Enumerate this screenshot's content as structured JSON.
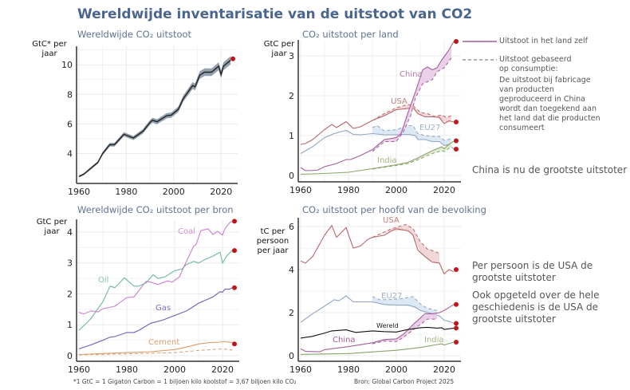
{
  "title": "Wereldwijde inventarisatie  van de uitstoot van CO2",
  "annotations": {
    "legend_territorial": "Uitstoot in het land zelf",
    "legend_consumption": "Uitstoot gebaseerd op consumptie:",
    "legend_consumption_detail": "De uitstoot bij fabricage van producten geproduceerd in China wordt dan toegekend aan het land dat die producten consumeert",
    "china_note": "China is nu de grootste uitstoter",
    "per_person_note": "Per persoon is de USA de grootste uitstoter",
    "cumulative_note": "Ook opgeteld over de hele geschiedenis is de USA de grootste uitstoter"
  },
  "footnote": "*1 GtC = 1 Gigaton Carbon = 1 biljoen kilo koolstof = 3,67 biljoen kilo CO₂",
  "source": "Bron: Global Carbon Project 2025",
  "colors": {
    "title": "#4a6690",
    "dot": "#c0161b",
    "grid": "#ebebeb"
  },
  "chart_data": [
    {
      "type": "line",
      "title": "Wereldwijde CO₂ uitstoot",
      "ylabel": "GtC* per jaar",
      "xlim": [
        1959,
        2027
      ],
      "ylim": [
        1.98,
        11.25
      ],
      "xticks": [
        1960,
        1980,
        2000,
        2020
      ],
      "yticks": [
        4,
        6,
        8,
        10
      ],
      "grid": true,
      "series": [
        {
          "color": "#222222",
          "band": "#8797a6",
          "band_pm": 0.27,
          "x": [
            1960,
            1962,
            1965,
            1968,
            1970,
            1973,
            1975,
            1979,
            1983,
            1987,
            1990,
            1991,
            1993,
            1997,
            1999,
            2002,
            2004,
            2008,
            2009,
            2011,
            2013,
            2016,
            2019,
            2020,
            2021,
            2024
          ],
          "y": [
            2.45,
            2.6,
            3.0,
            3.4,
            4.0,
            4.6,
            4.6,
            5.3,
            5.05,
            5.5,
            6.1,
            6.25,
            6.15,
            6.55,
            6.6,
            7.0,
            7.7,
            8.6,
            8.5,
            9.3,
            9.5,
            9.5,
            9.9,
            9.35,
            9.9,
            10.3
          ],
          "end_point": [
            2025,
            10.4
          ]
        }
      ]
    },
    {
      "type": "line",
      "title": "CO₂ uitstoot per land",
      "ylabel": "GtC per jaar",
      "xlim": [
        1959,
        2027
      ],
      "ylim": [
        -0.16,
        3.4
      ],
      "xticks": [
        1960,
        1980,
        2000,
        2020
      ],
      "yticks": [
        0,
        1,
        2,
        3
      ],
      "grid": true,
      "series": [
        {
          "name": "USA",
          "color": "#b5676b",
          "fill": "#efd0d0",
          "x": [
            1960,
            1962,
            1965,
            1970,
            1973,
            1975,
            1979,
            1982,
            1985,
            1990,
            1995,
            2000,
            2005,
            2007,
            2009,
            2012,
            2015,
            2018,
            2020,
            2022,
            2024
          ],
          "y": [
            0.78,
            0.8,
            0.9,
            1.15,
            1.28,
            1.2,
            1.35,
            1.18,
            1.22,
            1.38,
            1.5,
            1.65,
            1.68,
            1.7,
            1.55,
            1.47,
            1.47,
            1.46,
            1.3,
            1.37,
            1.34
          ],
          "consumption": {
            "x": [
              1990,
              1995,
              2000,
              2005,
              2007,
              2010,
              2013,
              2016,
              2019,
              2021,
              2023
            ],
            "y": [
              1.38,
              1.55,
              1.7,
              1.78,
              1.75,
              1.58,
              1.55,
              1.48,
              1.52,
              1.45,
              1.5
            ]
          },
          "end_point": [
            2025,
            1.34
          ]
        },
        {
          "name": "EU27",
          "color": "#8fa6bc",
          "fill": "#d6e4f2",
          "x": [
            1960,
            1965,
            1970,
            1974,
            1979,
            1982,
            1985,
            1990,
            1995,
            2000,
            2005,
            2008,
            2009,
            2012,
            2015,
            2018,
            2020,
            2022,
            2024
          ],
          "y": [
            0.55,
            0.72,
            0.95,
            1.05,
            1.13,
            1.03,
            1.02,
            1.05,
            1.02,
            1.02,
            1.03,
            1.0,
            0.9,
            0.9,
            0.85,
            0.85,
            0.75,
            0.78,
            0.66
          ],
          "consumption": {
            "x": [
              1990,
              1992,
              1995,
              2000,
              2005,
              2007,
              2009,
              2012,
              2015,
              2018,
              2020,
              2023
            ],
            "y": [
              1.2,
              1.25,
              1.12,
              1.15,
              1.25,
              1.25,
              1.05,
              1.0,
              0.98,
              0.98,
              0.88,
              0.92
            ]
          },
          "end_point": [
            2025,
            0.66
          ]
        },
        {
          "name": "India",
          "color": "#8aa36a",
          "fill": "#dde8cc",
          "x": [
            1960,
            1970,
            1980,
            1990,
            2000,
            2005,
            2010,
            2015,
            2019,
            2020,
            2022,
            2024
          ],
          "y": [
            0.03,
            0.05,
            0.08,
            0.17,
            0.27,
            0.33,
            0.47,
            0.62,
            0.72,
            0.67,
            0.78,
            0.86
          ],
          "consumption": {
            "x": [
              1990,
              2000,
              2005,
              2010,
              2015,
              2019,
              2020,
              2023
            ],
            "y": [
              0.16,
              0.25,
              0.3,
              0.42,
              0.55,
              0.62,
              0.6,
              0.72
            ]
          },
          "end_point": [
            2025,
            0.87
          ]
        },
        {
          "name": "China",
          "color": "#a0609a",
          "fill": "#e6c8e4",
          "x": [
            1960,
            1962,
            1967,
            1970,
            1975,
            1979,
            1981,
            1985,
            1990,
            1995,
            2000,
            2002,
            2005,
            2008,
            2011,
            2013,
            2015,
            2017,
            2019,
            2020,
            2022,
            2024
          ],
          "y": [
            0.2,
            0.12,
            0.13,
            0.22,
            0.3,
            0.4,
            0.4,
            0.5,
            0.65,
            0.9,
            0.95,
            1.05,
            1.6,
            2.1,
            2.65,
            2.72,
            2.65,
            2.7,
            2.9,
            2.98,
            3.15,
            3.36
          ],
          "consumption": {
            "x": [
              1990,
              1995,
              2000,
              2003,
              2006,
              2008,
              2011,
              2013,
              2015,
              2017,
              2020,
              2023
            ],
            "y": [
              0.6,
              0.85,
              0.85,
              1.1,
              1.5,
              1.95,
              2.3,
              2.35,
              2.4,
              2.6,
              2.7,
              2.95
            ]
          },
          "end_point": [
            2025,
            3.36
          ]
        }
      ]
    },
    {
      "type": "line",
      "title": "Wereldwijde CO₂ uitstoot per bron",
      "ylabel": "GtC per jaar",
      "xlim": [
        1959,
        2027
      ],
      "ylim": [
        -0.18,
        4.41
      ],
      "xticks": [
        1960,
        1980,
        2000,
        2020
      ],
      "yticks": [
        0,
        1,
        2,
        3,
        4
      ],
      "grid": true,
      "series": [
        {
          "name": "Cement",
          "color": "#d89d6a",
          "x": [
            1960,
            1970,
            1980,
            1990,
            2000,
            2005,
            2010,
            2014,
            2019,
            2021,
            2024
          ],
          "y": [
            0.04,
            0.07,
            0.1,
            0.13,
            0.2,
            0.28,
            0.38,
            0.42,
            0.44,
            0.46,
            0.42
          ],
          "dashed": {
            "x": [
              1960,
              1980,
              2000,
              2010,
              2020,
              2024
            ],
            "y": [
              0.03,
              0.06,
              0.1,
              0.17,
              0.22,
              0.18
            ]
          },
          "end_point": [
            2025,
            0.38
          ]
        },
        {
          "name": "Gas",
          "color": "#6a5fb8",
          "x": [
            1960,
            1965,
            1970,
            1973,
            1975,
            1980,
            1983,
            1985,
            1990,
            1995,
            2000,
            2005,
            2008,
            2010,
            2013,
            2016,
            2019,
            2020,
            2021,
            2023,
            2024
          ],
          "y": [
            0.22,
            0.35,
            0.5,
            0.6,
            0.62,
            0.75,
            0.75,
            0.82,
            1.05,
            1.15,
            1.3,
            1.45,
            1.6,
            1.7,
            1.8,
            1.9,
            2.07,
            2.05,
            2.15,
            2.15,
            2.2
          ],
          "end_point": [
            2025,
            2.2
          ]
        },
        {
          "name": "Oil",
          "color": "#6fba98",
          "x": [
            1960,
            1965,
            1970,
            1973,
            1975,
            1979,
            1983,
            1985,
            1988,
            1991,
            1993,
            1996,
            2000,
            2003,
            2005,
            2008,
            2010,
            2013,
            2016,
            2019,
            2020,
            2022,
            2024
          ],
          "y": [
            0.82,
            1.2,
            1.75,
            2.25,
            2.2,
            2.52,
            2.25,
            2.25,
            2.35,
            2.62,
            2.5,
            2.55,
            2.75,
            2.8,
            2.95,
            3.05,
            3.0,
            3.12,
            3.22,
            3.35,
            3.0,
            3.25,
            3.4
          ],
          "end_point": [
            2025,
            3.4
          ]
        },
        {
          "name": "Coal",
          "color": "#cc7fcc",
          "x": [
            1960,
            1962,
            1965,
            1968,
            1970,
            1975,
            1980,
            1983,
            1985,
            1988,
            1990,
            1993,
            1997,
            1999,
            2002,
            2004,
            2008,
            2009,
            2011,
            2014,
            2016,
            2018,
            2020,
            2021,
            2023,
            2024
          ],
          "y": [
            1.4,
            1.35,
            1.45,
            1.42,
            1.52,
            1.6,
            1.88,
            1.9,
            2.1,
            2.4,
            2.38,
            2.3,
            2.42,
            2.38,
            2.55,
            2.9,
            3.55,
            3.6,
            4.05,
            4.1,
            3.92,
            4.02,
            3.9,
            4.1,
            4.3,
            4.35
          ],
          "end_point": [
            2025,
            4.35
          ]
        }
      ]
    },
    {
      "type": "line",
      "title": "CO₂ uitstoot per hoofd van de bevolking",
      "ylabel": "tC per persoon per jaar",
      "xlim": [
        1959,
        2027
      ],
      "ylim": [
        -0.26,
        6.41
      ],
      "xticks": [
        1960,
        1980,
        2000,
        2020
      ],
      "yticks": [
        0,
        2,
        4,
        6
      ],
      "grid": true,
      "series": [
        {
          "name": "USA",
          "color": "#b5676b",
          "fill": "#efd0d0",
          "x": [
            1960,
            1962,
            1965,
            1970,
            1973,
            1975,
            1979,
            1982,
            1985,
            1988,
            1990,
            1995,
            1998,
            2000,
            2005,
            2007,
            2009,
            2012,
            2015,
            2018,
            2020,
            2022,
            2024
          ],
          "y": [
            4.4,
            4.3,
            4.6,
            5.6,
            6.05,
            5.5,
            5.95,
            5.0,
            5.1,
            5.4,
            5.5,
            5.6,
            5.8,
            5.9,
            5.8,
            5.6,
            4.9,
            4.6,
            4.35,
            4.3,
            3.8,
            4.0,
            3.9
          ],
          "consumption": {
            "x": [
              1990,
              1998,
              2004,
              2007,
              2010,
              2013,
              2016,
              2018
            ],
            "y": [
              5.5,
              5.9,
              6.1,
              5.9,
              5.3,
              4.95,
              4.85,
              4.75
            ]
          },
          "end_point": [
            2025,
            4.0
          ]
        },
        {
          "name": "EU27",
          "color": "#8fa6bc",
          "fill": "#d6e4f2",
          "x": [
            1960,
            1965,
            1970,
            1974,
            1976,
            1979,
            1982,
            1985,
            1990,
            1995,
            2000,
            2005,
            2008,
            2010,
            2015,
            2018,
            2020,
            2022,
            2024
          ],
          "y": [
            1.55,
            1.95,
            2.3,
            2.6,
            2.55,
            2.78,
            2.5,
            2.5,
            2.5,
            2.38,
            2.35,
            2.35,
            2.25,
            2.1,
            1.95,
            1.85,
            1.65,
            1.6,
            1.5
          ],
          "consumption": {
            "x": [
              1990,
              1993,
              1997,
              2002,
              2007,
              2010,
              2013,
              2017
            ],
            "y": [
              2.75,
              2.6,
              2.6,
              2.65,
              2.75,
              2.4,
              2.2,
              2.1
            ]
          },
          "end_point": [
            2025,
            1.5
          ]
        },
        {
          "name": "India",
          "color": "#8aa36a",
          "x": [
            1960,
            1980,
            2000,
            2010,
            2019,
            2020,
            2024
          ],
          "y": [
            0.06,
            0.1,
            0.25,
            0.38,
            0.55,
            0.5,
            0.63
          ],
          "end_point": [
            2025,
            0.63
          ]
        },
        {
          "name": "China",
          "color": "#a0609a",
          "fill": "#e6c8e4",
          "x": [
            1960,
            1962,
            1968,
            1970,
            1980,
            1990,
            1995,
            2000,
            2003,
            2007,
            2010,
            2012,
            2015,
            2018,
            2020,
            2024
          ],
          "y": [
            0.32,
            0.2,
            0.18,
            0.28,
            0.42,
            0.6,
            0.75,
            0.78,
            1.0,
            1.45,
            1.75,
            1.95,
            1.95,
            2.0,
            2.1,
            2.38
          ],
          "consumption": {
            "x": [
              1990,
              1995,
              2000,
              2003,
              2007,
              2010,
              2013,
              2017
            ],
            "y": [
              0.55,
              0.68,
              0.65,
              0.85,
              1.2,
              1.45,
              1.7,
              1.7
            ]
          },
          "end_point": [
            2025,
            2.38
          ]
        },
        {
          "name": "Wereld",
          "color": "#111111",
          "x": [
            1960,
            1965,
            1970,
            1973,
            1979,
            1983,
            1990,
            1995,
            2000,
            2005,
            2010,
            2013,
            2017,
            2019,
            2020,
            2024
          ],
          "y": [
            0.82,
            0.9,
            1.05,
            1.15,
            1.2,
            1.08,
            1.15,
            1.12,
            1.1,
            1.22,
            1.3,
            1.32,
            1.28,
            1.3,
            1.22,
            1.28
          ],
          "end_point": [
            2025,
            1.28
          ]
        }
      ]
    }
  ]
}
